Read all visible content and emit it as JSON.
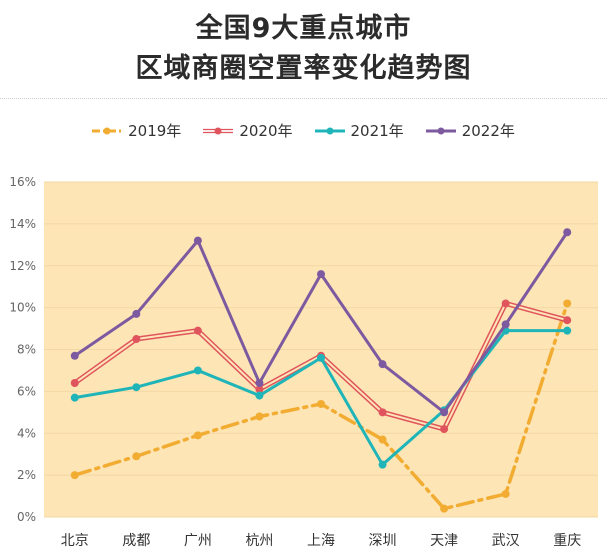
{
  "title_line1": "全国9大重点城市",
  "title_line2": "区域商圈空置率变化趋势图",
  "chart_data": {
    "type": "line",
    "categories": [
      "北京",
      "成都",
      "广州",
      "杭州",
      "上海",
      "深圳",
      "天津",
      "武汉",
      "重庆"
    ],
    "series": [
      {
        "name": "2019年",
        "color": "#f2ac31",
        "style": "dash-dot",
        "values": [
          2.0,
          2.9,
          3.9,
          4.8,
          5.4,
          3.7,
          0.4,
          1.1,
          10.2
        ]
      },
      {
        "name": "2020年",
        "color": "#e0555d",
        "style": "double",
        "values": [
          6.4,
          8.5,
          8.9,
          6.1,
          7.7,
          5.0,
          4.2,
          10.2,
          9.4
        ]
      },
      {
        "name": "2021年",
        "color": "#1fb5b8",
        "style": "solid",
        "values": [
          5.7,
          6.2,
          7.0,
          5.8,
          7.6,
          2.5,
          5.1,
          8.9,
          8.9
        ]
      },
      {
        "name": "2022年",
        "color": "#7d5a9f",
        "style": "solid",
        "values": [
          7.7,
          9.7,
          13.2,
          6.4,
          11.6,
          7.3,
          5.0,
          9.2,
          13.6
        ]
      }
    ],
    "yticks": [
      "0%",
      "2%",
      "4%",
      "6%",
      "8%",
      "10%",
      "12%",
      "14%",
      "16%"
    ],
    "ylim": [
      0,
      16
    ],
    "grid": true,
    "legend_position": "top",
    "plot_background": "#fde5b6"
  }
}
